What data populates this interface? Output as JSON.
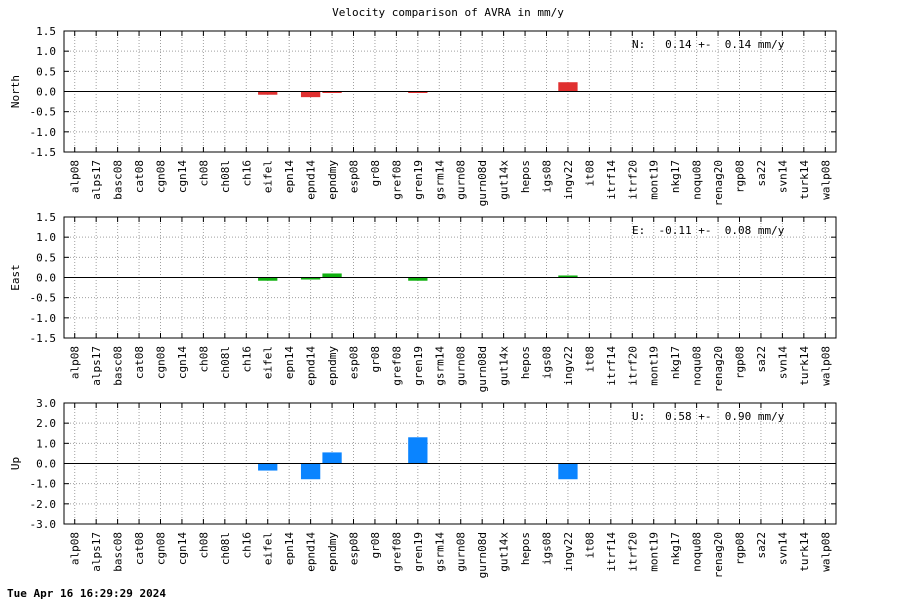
{
  "chart_title": "Velocity comparison of AVRA in mm/y",
  "timestamp": "Tue Apr 16 16:29:29 2024",
  "chart_data": [
    {
      "type": "bar",
      "ylabel": "North",
      "annotation": "N:   0.14 +-  0.14 mm/y",
      "color": "#e03030",
      "ylim": [
        -1.5,
        1.5
      ],
      "yticks": [
        -1.5,
        -1.0,
        -0.5,
        0.0,
        0.5,
        1.0,
        1.5
      ],
      "ytick_labels": [
        "-1.5",
        "-1.0",
        "-0.5",
        "0.0",
        "0.5",
        "1.0",
        "1.5"
      ],
      "grid": true,
      "categories": [
        "alp08",
        "alps17",
        "basc08",
        "cat08",
        "cgn08",
        "cgn14",
        "ch08",
        "ch08l",
        "ch16",
        "eifel",
        "epn14",
        "epnd14",
        "epndmy",
        "esp08",
        "gr08",
        "gref08",
        "gren19",
        "gsrm14",
        "gurn08",
        "gurn08d",
        "gut14x",
        "hepos",
        "igs08",
        "ingv22",
        "it08",
        "itrf14",
        "itrf20",
        "mont19",
        "nkg17",
        "noqu08",
        "renag20",
        "rgp08",
        "sa22",
        "svn14",
        "turk14",
        "walp08"
      ],
      "values": [
        null,
        null,
        null,
        null,
        null,
        null,
        null,
        null,
        null,
        -0.08,
        null,
        -0.14,
        -0.03,
        null,
        null,
        null,
        -0.02,
        null,
        null,
        null,
        null,
        null,
        null,
        0.23,
        null,
        null,
        null,
        null,
        null,
        null,
        null,
        null,
        null,
        null,
        null,
        null
      ]
    },
    {
      "type": "bar",
      "ylabel": "East",
      "annotation": "E:  -0.11 +-  0.08 mm/y",
      "color": "#10b010",
      "ylim": [
        -1.5,
        1.5
      ],
      "yticks": [
        -1.5,
        -1.0,
        -0.5,
        0.0,
        0.5,
        1.0,
        1.5
      ],
      "ytick_labels": [
        "-1.5",
        "-1.0",
        "-0.5",
        "0.0",
        "0.5",
        "1.0",
        "1.5"
      ],
      "grid": true,
      "categories": [
        "alp08",
        "alps17",
        "basc08",
        "cat08",
        "cgn08",
        "cgn14",
        "ch08",
        "ch08l",
        "ch16",
        "eifel",
        "epn14",
        "epnd14",
        "epndmy",
        "esp08",
        "gr08",
        "gref08",
        "gren19",
        "gsrm14",
        "gurn08",
        "gurn08d",
        "gut14x",
        "hepos",
        "igs08",
        "ingv22",
        "it08",
        "itrf14",
        "itrf20",
        "mont19",
        "nkg17",
        "noqu08",
        "renag20",
        "rgp08",
        "sa22",
        "svn14",
        "turk14",
        "walp08"
      ],
      "values": [
        null,
        null,
        null,
        null,
        null,
        null,
        null,
        null,
        null,
        -0.08,
        null,
        -0.05,
        0.1,
        null,
        null,
        null,
        -0.08,
        null,
        null,
        null,
        null,
        null,
        null,
        0.05,
        null,
        null,
        null,
        null,
        null,
        null,
        null,
        null,
        null,
        null,
        null,
        null
      ]
    },
    {
      "type": "bar",
      "ylabel": "Up",
      "annotation": "U:   0.58 +-  0.90 mm/y",
      "color": "#0a84ff",
      "ylim": [
        -3.0,
        3.0
      ],
      "yticks": [
        -3.0,
        -2.0,
        -1.0,
        0.0,
        1.0,
        2.0,
        3.0
      ],
      "ytick_labels": [
        "-3.0",
        "-2.0",
        "-1.0",
        "0.0",
        "1.0",
        "2.0",
        "3.0"
      ],
      "grid": true,
      "categories": [
        "alp08",
        "alps17",
        "basc08",
        "cat08",
        "cgn08",
        "cgn14",
        "ch08",
        "ch08l",
        "ch16",
        "eifel",
        "epn14",
        "epnd14",
        "epndmy",
        "esp08",
        "gr08",
        "gref08",
        "gren19",
        "gsrm14",
        "gurn08",
        "gurn08d",
        "gut14x",
        "hepos",
        "igs08",
        "ingv22",
        "it08",
        "itrf14",
        "itrf20",
        "mont19",
        "nkg17",
        "noqu08",
        "renag20",
        "rgp08",
        "sa22",
        "svn14",
        "turk14",
        "walp08"
      ],
      "values": [
        null,
        null,
        null,
        null,
        null,
        null,
        null,
        null,
        null,
        -0.35,
        null,
        -0.78,
        0.55,
        null,
        null,
        null,
        1.3,
        null,
        null,
        null,
        null,
        null,
        null,
        -0.78,
        null,
        null,
        null,
        null,
        null,
        null,
        null,
        null,
        null,
        null,
        null,
        null
      ]
    }
  ]
}
